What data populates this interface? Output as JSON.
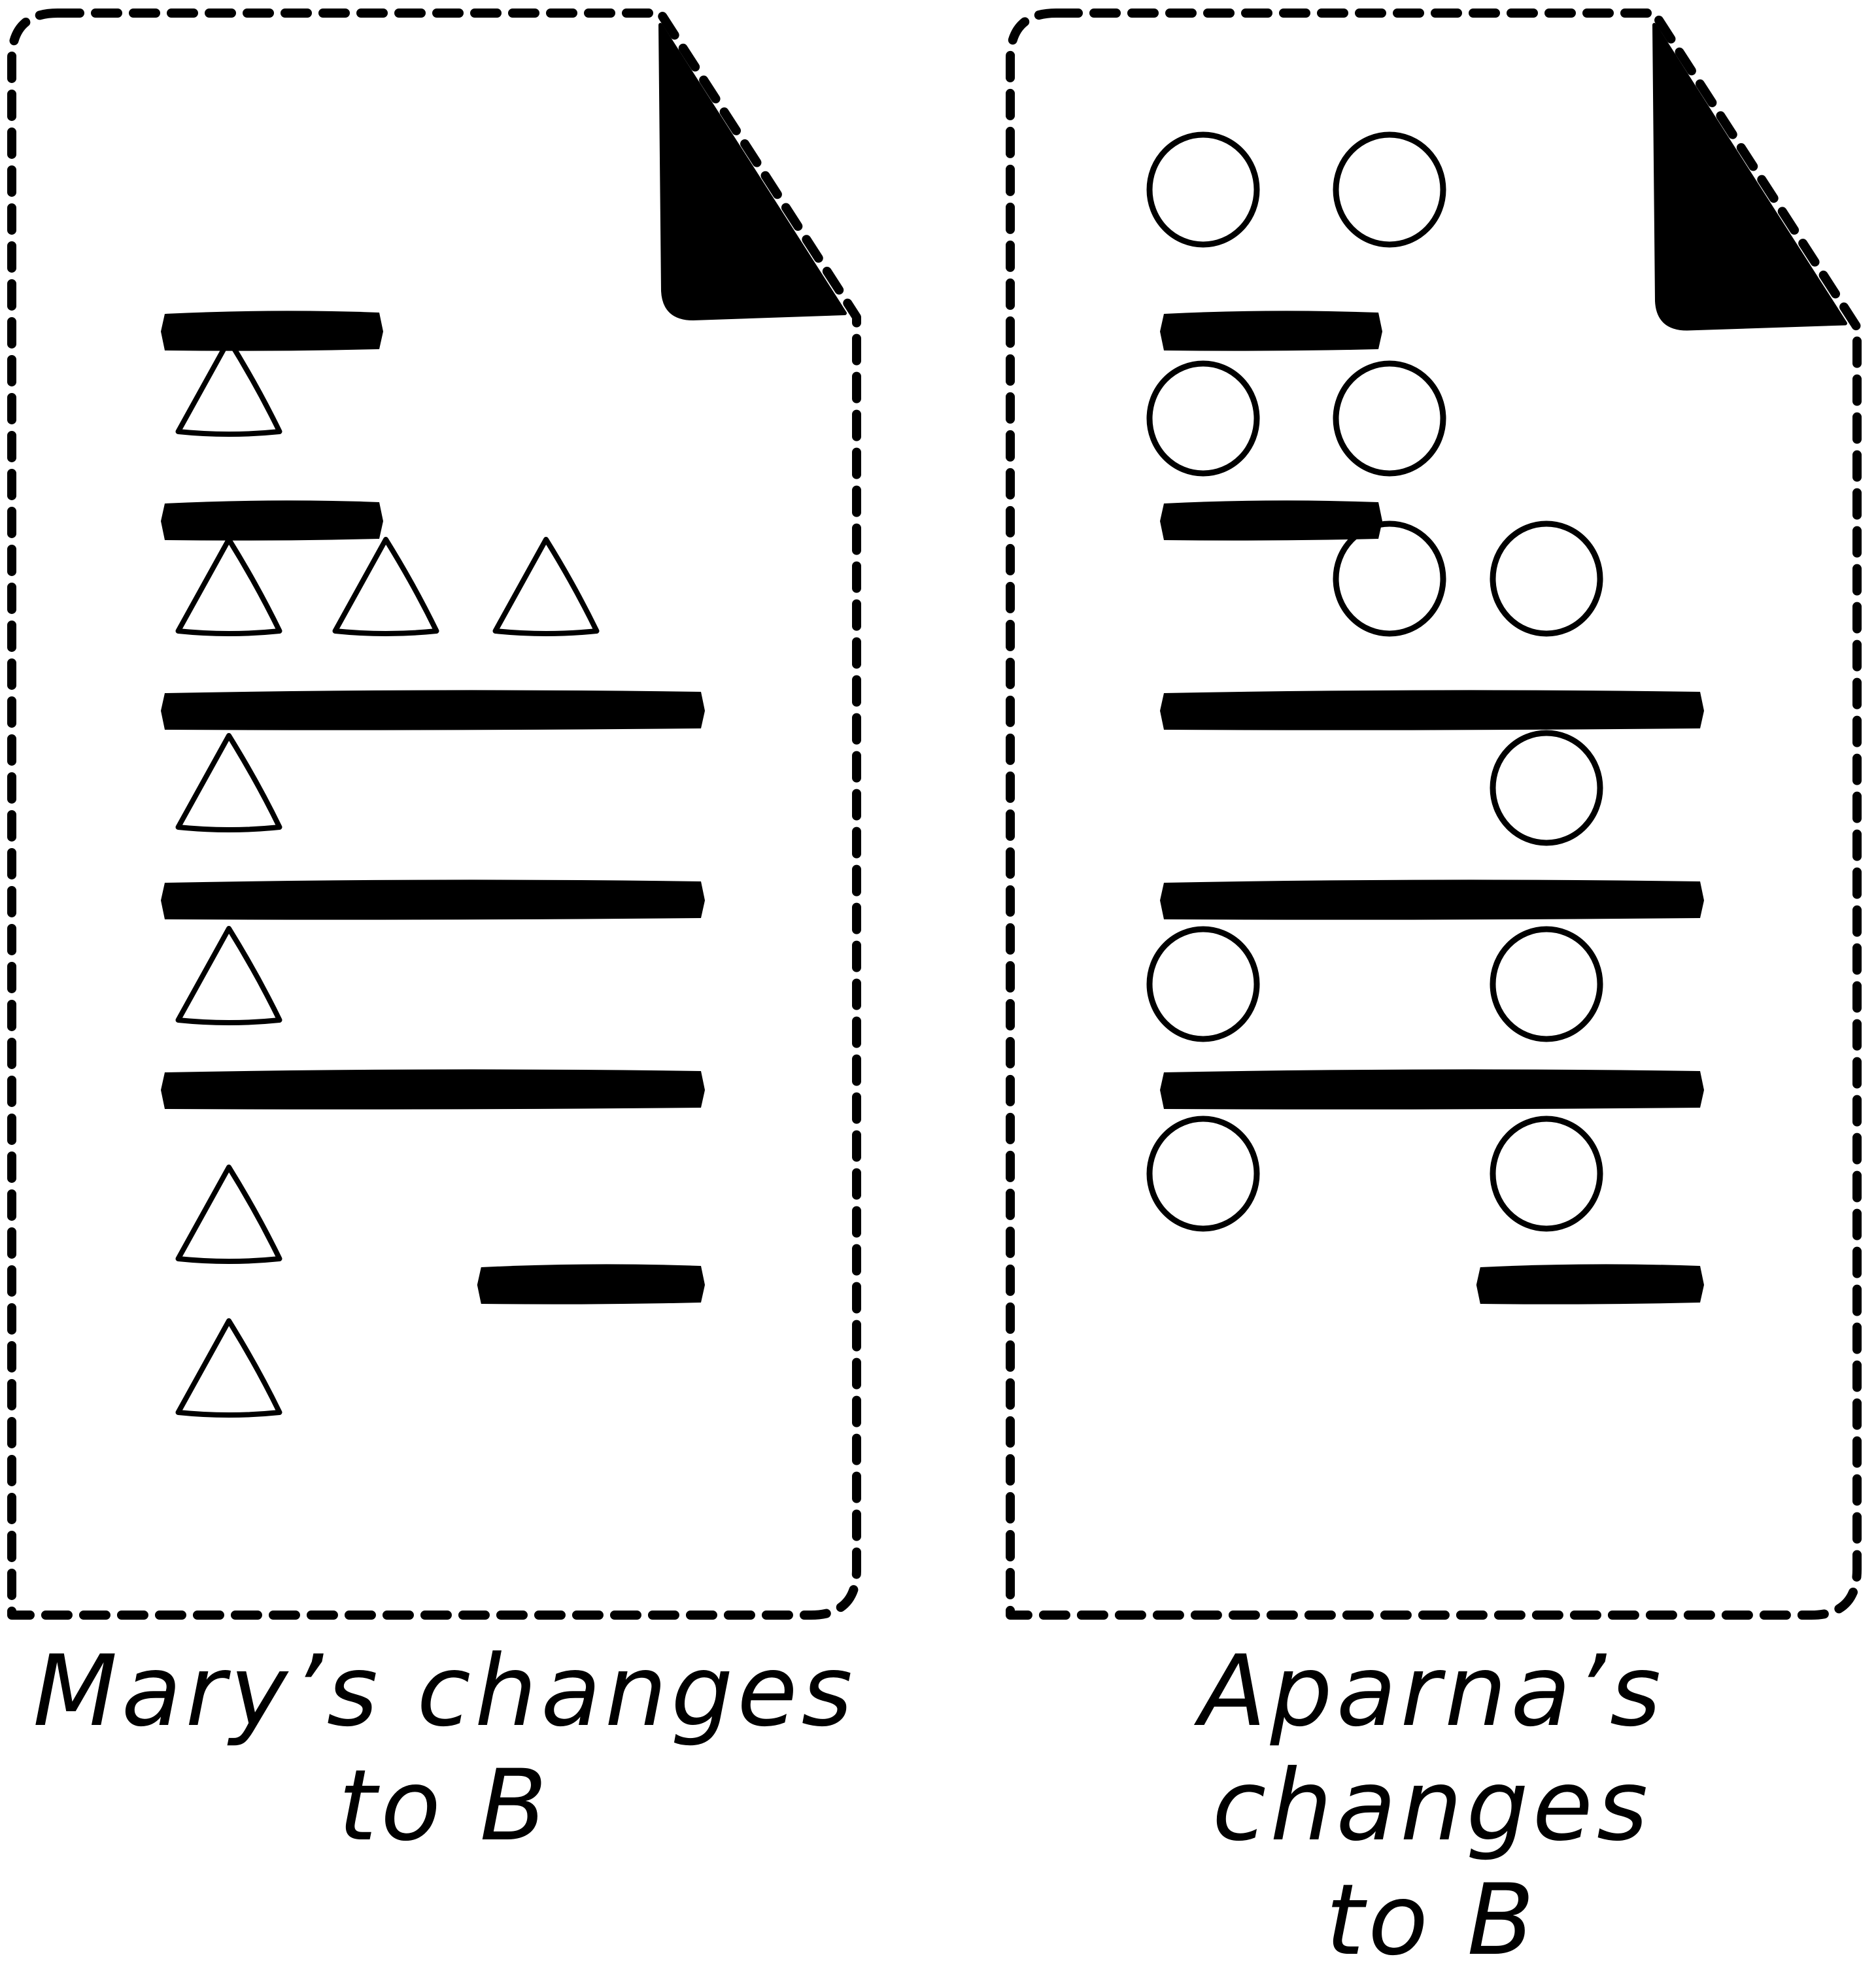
{
  "colors": {
    "ink": "#000000",
    "paper": "#ffffff"
  },
  "documents": [
    {
      "shape": "triangle",
      "caption_line1": "Mary’s changes",
      "caption_line2": "to B",
      "text_bars": [
        {
          "indent": 0.0,
          "length": 0.4
        },
        {
          "indent": 0.0,
          "length": 0.4
        },
        {
          "indent": 0.0,
          "length": 1.0
        },
        {
          "indent": 0.0,
          "length": 1.0
        },
        {
          "indent": 0.0,
          "length": 1.0
        },
        {
          "indent": 0.59,
          "length": 0.41
        }
      ],
      "shape_rows": [
        [
          0
        ],
        [
          0,
          1,
          2
        ],
        [
          0
        ],
        [
          0
        ],
        [
          0
        ],
        [
          0
        ]
      ]
    },
    {
      "shape": "circle",
      "caption_line1": "Aparna’s changes",
      "caption_line2": "to B",
      "text_bars": [
        {
          "indent": 0.0,
          "length": 0.4
        },
        {
          "indent": 0.0,
          "length": 0.4
        },
        {
          "indent": 0.0,
          "length": 1.0
        },
        {
          "indent": 0.0,
          "length": 1.0
        },
        {
          "indent": 0.0,
          "length": 1.0
        },
        {
          "indent": 0.59,
          "length": 0.41
        }
      ],
      "shape_rows": [
        [
          0,
          1
        ],
        [
          0,
          1
        ],
        [
          1,
          2
        ],
        [
          2
        ],
        [
          0,
          2
        ],
        [
          0,
          2
        ]
      ]
    }
  ]
}
